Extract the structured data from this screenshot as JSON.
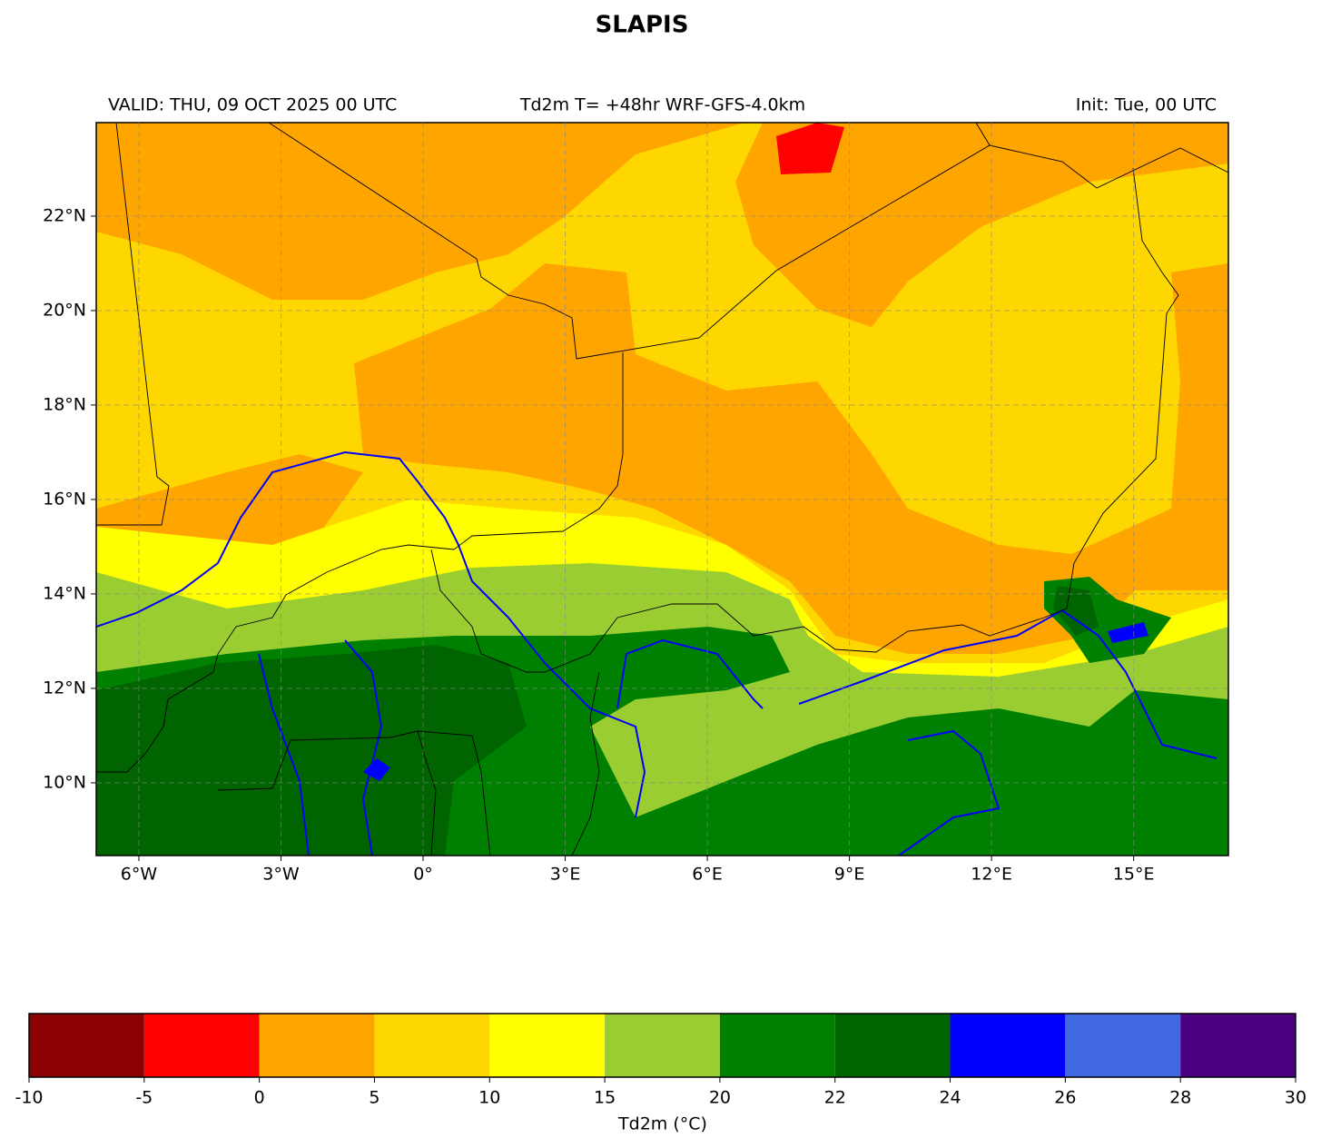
{
  "title": "SLAPIS",
  "valid": "VALID: THU, 09 OCT 2025 00 UTC",
  "subtitle": "Td2m T= +48hr WRF-GFS-4.0km",
  "init": "Init: Tue, 00 UTC",
  "map": {
    "xlim": [
      -6.9,
      17.0
    ],
    "ylim": [
      8.46,
      23.98
    ],
    "xticks": [
      {
        "value": -6,
        "label": "6°W"
      },
      {
        "value": -3,
        "label": "3°W"
      },
      {
        "value": 0,
        "label": "0°"
      },
      {
        "value": 3,
        "label": "3°E"
      },
      {
        "value": 6,
        "label": "6°E"
      },
      {
        "value": 9,
        "label": "9°E"
      },
      {
        "value": 12,
        "label": "12°E"
      },
      {
        "value": 15,
        "label": "15°E"
      }
    ],
    "yticks": [
      {
        "value": 10,
        "label": "10°N"
      },
      {
        "value": 12,
        "label": "12°N"
      },
      {
        "value": 14,
        "label": "14°N"
      },
      {
        "value": 16,
        "label": "16°N"
      },
      {
        "value": 18,
        "label": "18°N"
      },
      {
        "value": 20,
        "label": "20°N"
      },
      {
        "value": 22,
        "label": "22°N"
      }
    ],
    "grid": true
  },
  "colorbar": {
    "label": "Td2m (°C)",
    "bounds": [
      -10,
      -5,
      0,
      5,
      10,
      15,
      20,
      22,
      24,
      26,
      28,
      30
    ],
    "colors": [
      "#8b0000",
      "#ff0000",
      "#ffa500",
      "#ffd700",
      "#ffff00",
      "#9acd32",
      "#008000",
      "#006400",
      "#0000ff",
      "#4169e1",
      "#4b0082"
    ]
  }
}
